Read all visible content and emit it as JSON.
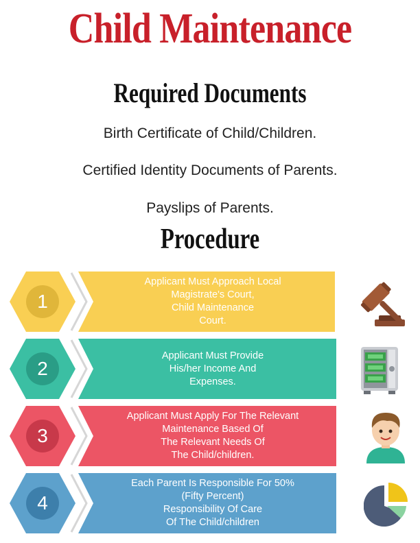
{
  "title": "Child Maintenance",
  "required": {
    "heading": "Required Documents",
    "items": [
      "Birth Certificate of Child/Children.",
      "Certified Identity Documents of Parents.",
      "Payslips of Parents."
    ]
  },
  "procedure": {
    "heading": "Procedure",
    "steps": [
      {
        "number": "1",
        "lines": [
          "Applicant Must Approach Local",
          "Magistrate's Court,",
          "Child Maintenance",
          "Court."
        ],
        "color": "#f9cf53",
        "hex_dark": "#e0b63a",
        "icon": "gavel-icon"
      },
      {
        "number": "2",
        "lines": [
          "Applicant Must Provide",
          "His/her Income And",
          "Expenses."
        ],
        "color": "#3bbfa3",
        "hex_dark": "#2a9d86",
        "icon": "safe-money-icon"
      },
      {
        "number": "3",
        "lines": [
          "Applicant Must Apply For The Relevant",
          "Maintenance Based Of",
          "The Relevant Needs Of",
          "The Child/children."
        ],
        "color": "#ec5565",
        "hex_dark": "#c8394a",
        "icon": "child-avatar-icon"
      },
      {
        "number": "4",
        "lines": [
          "Each Parent Is Responsible For 50%",
          "(Fifty Percent)",
          "Responsibility Of Care",
          "Of The Child/children"
        ],
        "color": "#5da1cc",
        "hex_dark": "#3d7fab",
        "icon": "pie-chart-icon"
      }
    ]
  }
}
